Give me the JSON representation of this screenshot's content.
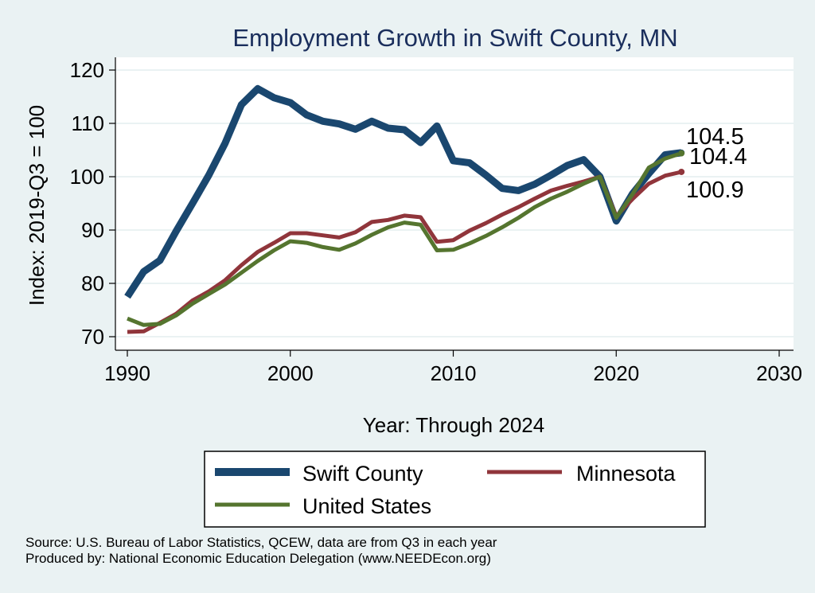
{
  "chart_data": {
    "type": "line",
    "title": "Employment Growth in Swift County, MN",
    "xlabel": "Year: Through 2024",
    "ylabel": "Index: 2019-Q3 = 100",
    "xlim": [
      1990,
      2030
    ],
    "ylim": [
      70,
      120
    ],
    "x_ticks": [
      1990,
      2000,
      2010,
      2020,
      2030
    ],
    "y_ticks": [
      70,
      80,
      90,
      100,
      110,
      120
    ],
    "grid": true,
    "legend_position": "bottom",
    "series": [
      {
        "name": "Swift  County",
        "color": "#1a476f",
        "x": [
          1990,
          1991,
          1992,
          1993,
          1994,
          1995,
          1996,
          1997,
          1998,
          1999,
          2000,
          2001,
          2002,
          2003,
          2004,
          2005,
          2006,
          2007,
          2008,
          2009,
          2010,
          2011,
          2012,
          2013,
          2014,
          2015,
          2016,
          2017,
          2018,
          2019,
          2020,
          2021,
          2022,
          2023,
          2024
        ],
        "values": [
          77.5,
          82.2,
          84.3,
          89.8,
          95.0,
          100.3,
          106.3,
          113.5,
          116.5,
          114.8,
          113.9,
          111.6,
          110.4,
          109.9,
          108.9,
          110.4,
          109.1,
          108.8,
          106.4,
          109.5,
          103.0,
          102.6,
          100.3,
          97.8,
          97.4,
          98.6,
          100.3,
          102.1,
          103.2,
          100.0,
          91.7,
          96.8,
          100.6,
          104.1,
          104.5
        ],
        "end_label": "104.5"
      },
      {
        "name": "Minnesota",
        "color": "#90353b",
        "x": [
          1990,
          1991,
          1992,
          1993,
          1994,
          1995,
          1996,
          1997,
          1998,
          1999,
          2000,
          2001,
          2002,
          2003,
          2004,
          2005,
          2006,
          2007,
          2008,
          2009,
          2010,
          2011,
          2012,
          2013,
          2014,
          2015,
          2016,
          2017,
          2018,
          2019,
          2020,
          2021,
          2022,
          2023,
          2024
        ],
        "values": [
          70.9,
          71.0,
          72.6,
          74.3,
          76.8,
          78.5,
          80.6,
          83.4,
          85.9,
          87.6,
          89.4,
          89.4,
          89.0,
          88.6,
          89.6,
          91.5,
          91.9,
          92.7,
          92.4,
          87.8,
          88.1,
          89.9,
          91.3,
          92.9,
          94.3,
          95.9,
          97.4,
          98.3,
          99.1,
          100.0,
          92.6,
          95.8,
          98.7,
          100.2,
          100.9
        ],
        "end_label": "100.9"
      },
      {
        "name": "United States",
        "color": "#55752f",
        "x": [
          1990,
          1991,
          1992,
          1993,
          1994,
          1995,
          1996,
          1997,
          1998,
          1999,
          2000,
          2001,
          2002,
          2003,
          2004,
          2005,
          2006,
          2007,
          2008,
          2009,
          2010,
          2011,
          2012,
          2013,
          2014,
          2015,
          2016,
          2017,
          2018,
          2019,
          2020,
          2021,
          2022,
          2023,
          2024
        ],
        "values": [
          73.4,
          72.2,
          72.4,
          74.0,
          76.2,
          78.0,
          79.8,
          82.0,
          84.2,
          86.2,
          87.9,
          87.6,
          86.8,
          86.3,
          87.5,
          89.1,
          90.5,
          91.4,
          91.0,
          86.2,
          86.3,
          87.5,
          88.9,
          90.5,
          92.3,
          94.3,
          95.9,
          97.2,
          98.7,
          100.0,
          92.3,
          96.7,
          101.7,
          103.4,
          104.4
        ],
        "end_label": "104.4"
      }
    ]
  },
  "legend": {
    "items": [
      "Swift  County",
      "Minnesota",
      "United States"
    ]
  },
  "source": {
    "line1": "Source: U.S. Bureau of Labor Statistics, QCEW, data are from Q3 in each year",
    "line2": "Produced by: National Economic Education Delegation (www.NEEDEcon.org)"
  }
}
